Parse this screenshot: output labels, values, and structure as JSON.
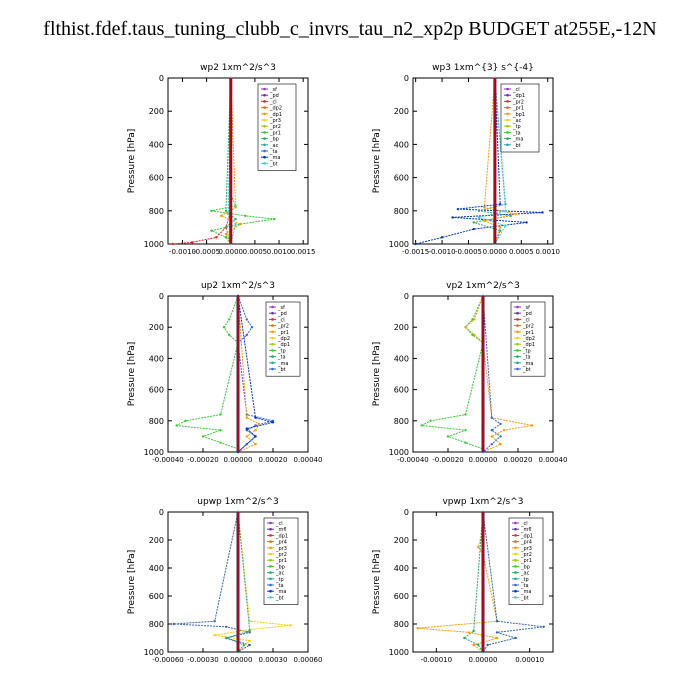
{
  "page": {
    "title": "flthist.fdef.taus_tuning_clubb_c_invrs_tau_n2_xp2p  BUDGET at255E,-12N"
  },
  "colors": {
    "frame": "#000000",
    "budget_line": "#cc0000",
    "budget_line_dark": "#5a1a5a"
  },
  "chart_data": [
    {
      "id": "wp2",
      "type": "line",
      "title": "wp2   1xm^2/s^3",
      "ylabel": "Pressure [hPa]",
      "ylim": [
        1000,
        0
      ],
      "xlim": [
        -0.0013,
        0.0016
      ],
      "xticks": [
        -0.001,
        -0.0005,
        0.0,
        0.0005,
        0.001,
        0.0015
      ],
      "xtick_labels": [
        "-0.0010",
        "-0.0005",
        "0.0000",
        "0.0005",
        "0.0010",
        "0.0015"
      ],
      "yticks": [
        0,
        200,
        400,
        600,
        800,
        1000
      ],
      "yticks_labels": [
        "0",
        "200",
        "400",
        "600",
        "800",
        "1000"
      ],
      "legend": [
        "_sf",
        "_pd",
        "_cl",
        "_dp2",
        "_dp1",
        "_pr3",
        "_pr2",
        "_pr1",
        "_bp",
        "_ac",
        "_ta",
        "_ma",
        "_bt"
      ],
      "series": [
        {
          "legend": "_pr1",
          "color": "#33cc33",
          "pressure": [
            0,
            700,
            770,
            800,
            830,
            850,
            880,
            920,
            960,
            1000
          ],
          "values": [
            0,
            0,
            0.0001,
            -0.0004,
            0.0003,
            0.0009,
            0.0002,
            -0.0004,
            -0.0001,
            0
          ]
        },
        {
          "legend": "_cl",
          "color": "#ee2222",
          "pressure": [
            0,
            800,
            900,
            960,
            990,
            1000
          ],
          "values": [
            0,
            0,
            -0.0001,
            -0.0003,
            -0.0008,
            -0.0012
          ]
        },
        {
          "legend": "_dp2",
          "color": "#ff9900",
          "pressure": [
            0,
            780,
            830,
            880,
            940,
            1000
          ],
          "values": [
            0,
            0.0001,
            -0.0002,
            0.0002,
            -0.0001,
            0
          ]
        },
        {
          "legend": "_bp",
          "color": "#33aa66",
          "pressure": [
            0,
            800,
            850,
            900,
            1000
          ],
          "values": [
            0,
            -0.0001,
            0.0001,
            -0.0001,
            0
          ]
        },
        {
          "legend": "_bt",
          "color": "#44ccdd",
          "pressure": [
            0,
            820,
            880,
            1000
          ],
          "values": [
            0,
            -5e-05,
            0.0001,
            0
          ]
        }
      ]
    },
    {
      "id": "wp3",
      "type": "line",
      "title": "wp3   1xm^{3} s^{-4}",
      "ylabel": "Pressure [hPa]",
      "ylim": [
        1000,
        0
      ],
      "xlim": [
        -0.00155,
        0.0011
      ],
      "xticks": [
        -0.0015,
        -0.001,
        -0.0005,
        0.0,
        0.0005,
        0.001
      ],
      "xtick_labels": [
        "-0.0015",
        "-0.0010",
        "-0.0005",
        "0.0000",
        "0.0005",
        "0.0010"
      ],
      "yticks": [
        0,
        200,
        400,
        600,
        800,
        1000
      ],
      "yticks_labels": [
        "0",
        "200",
        "400",
        "600",
        "800",
        "1000"
      ],
      "legend": [
        "_cl",
        "_dp1",
        "_pr2",
        "_pr1",
        "_bp1",
        "_ac",
        "_tp",
        "_ta",
        "_ma",
        "_bt"
      ],
      "series": [
        {
          "legend": "_tp",
          "color": "#0033cc",
          "pressure": [
            0,
            760,
            790,
            810,
            840,
            870,
            910,
            960,
            1000
          ],
          "values": [
            0,
            0.0001,
            -0.0007,
            0.0009,
            -0.0008,
            0.0006,
            -0.0004,
            -0.001,
            -0.0015
          ]
        },
        {
          "legend": "_ac",
          "color": "#33aa66",
          "pressure": [
            0,
            760,
            800,
            830,
            870,
            920,
            1000
          ],
          "values": [
            0,
            0.0002,
            -0.0003,
            0.0003,
            -0.0004,
            0.0001,
            0
          ]
        },
        {
          "legend": "_pr1",
          "color": "#ff9900",
          "pressure": [
            0,
            780,
            820,
            860,
            900,
            1000
          ],
          "values": [
            0,
            -0.0002,
            0.0004,
            -0.0002,
            0.0001,
            0
          ]
        },
        {
          "legend": "_bt",
          "color": "#44ccdd",
          "pressure": [
            0,
            800,
            840,
            890,
            1000
          ],
          "values": [
            0,
            0.0002,
            -0.0003,
            0.0002,
            0
          ]
        }
      ]
    },
    {
      "id": "up2",
      "type": "line",
      "title": "up2   1xm^2/s^3",
      "ylabel": "Pressure [hPa]",
      "ylim": [
        1000,
        0
      ],
      "xlim": [
        -0.0004,
        0.0004
      ],
      "xticks": [
        -0.0004,
        -0.0002,
        0.0,
        0.0002,
        0.0004
      ],
      "xtick_labels": [
        "-0.00040",
        "-0.00020",
        "0.00000",
        "0.00020",
        "0.00040"
      ],
      "yticks": [
        0,
        200,
        400,
        600,
        800,
        1000
      ],
      "yticks_labels": [
        "0",
        "200",
        "400",
        "600",
        "800",
        "1000"
      ],
      "legend": [
        "_sf",
        "_pd",
        "_cl",
        "_pr2",
        "_pr1",
        "_dp2",
        "_dp1",
        "_tp",
        "_ta",
        "_ma",
        "_bt"
      ],
      "series": [
        {
          "legend": "_dp1",
          "color": "#33cc33",
          "pressure": [
            0,
            150,
            200,
            250,
            300,
            760,
            800,
            830,
            860,
            900,
            940,
            980,
            1000
          ],
          "values": [
            0,
            -5e-05,
            -8e-05,
            -5e-05,
            0,
            -0.0001,
            -0.0003,
            -0.00035,
            -0.0001,
            -0.0002,
            -0.0001,
            0,
            0
          ]
        },
        {
          "legend": "_tp",
          "color": "#3366ee",
          "pressure": [
            0,
            150,
            200,
            250,
            300,
            760,
            800,
            830,
            860,
            900,
            950,
            1000
          ],
          "values": [
            0,
            5e-05,
            8e-05,
            5e-05,
            0,
            5e-05,
            0.0002,
            0.0001,
            5e-05,
            0.0001,
            5e-05,
            0
          ]
        },
        {
          "legend": "_pr1",
          "color": "#ff9900",
          "pressure": [
            0,
            780,
            820,
            860,
            900,
            950,
            1000
          ],
          "values": [
            0,
            5e-05,
            0.00012,
            0.0001,
            5e-05,
            0.0001,
            0
          ]
        },
        {
          "legend": "_ta",
          "color": "#0033cc",
          "pressure": [
            0,
            780,
            810,
            850,
            900,
            1000
          ],
          "values": [
            0,
            0.0001,
            0.0002,
            5e-05,
            0.0001,
            0
          ]
        }
      ]
    },
    {
      "id": "vp2",
      "type": "line",
      "title": "vp2   1xm^2/s^3",
      "ylabel": "Pressure [hPa]",
      "ylim": [
        1000,
        0
      ],
      "xlim": [
        -0.0004,
        0.0004
      ],
      "xticks": [
        -0.0004,
        -0.0002,
        0.0,
        0.0002,
        0.0004
      ],
      "xtick_labels": [
        "-0.00040",
        "-0.00020",
        "0.00000",
        "0.00020",
        "0.00040"
      ],
      "yticks": [
        0,
        200,
        400,
        600,
        800,
        1000
      ],
      "yticks_labels": [
        "0",
        "200",
        "400",
        "600",
        "800",
        "1000"
      ],
      "legend": [
        "_sf",
        "_pd",
        "_cl",
        "_pr2",
        "_pr1",
        "_dp2",
        "_dp1",
        "_tp",
        "_ta",
        "_ma",
        "_bt"
      ],
      "series": [
        {
          "legend": "_dp1",
          "color": "#33cc33",
          "pressure": [
            0,
            150,
            200,
            250,
            300,
            760,
            800,
            830,
            860,
            900,
            940,
            980,
            1000
          ],
          "values": [
            0,
            -6e-05,
            -0.0001,
            -6e-05,
            0,
            -0.0001,
            -0.0003,
            -0.00035,
            -0.0001,
            -0.0002,
            -0.0001,
            0,
            0
          ]
        },
        {
          "legend": "_pr1",
          "color": "#ff9900",
          "pressure": [
            0,
            150,
            200,
            250,
            300,
            780,
            830,
            860,
            900,
            950,
            1000
          ],
          "values": [
            0,
            -5e-05,
            -0.0001,
            -5e-05,
            0,
            5e-05,
            0.00028,
            0.00012,
            5e-05,
            0.0001,
            0
          ]
        },
        {
          "legend": "_tp",
          "color": "#3366ee",
          "pressure": [
            0,
            780,
            820,
            860,
            900,
            950,
            1000
          ],
          "values": [
            0,
            5e-05,
            0.0001,
            5e-05,
            0.0001,
            5e-05,
            0
          ]
        }
      ]
    },
    {
      "id": "upwp",
      "type": "line",
      "title": "upwp   1xm^2/s^3",
      "ylabel": "Pressure [hPa]",
      "ylim": [
        1000,
        0
      ],
      "xlim": [
        -0.0006,
        0.0006
      ],
      "xticks": [
        -0.0006,
        -0.0003,
        0.0,
        0.0003,
        0.0006
      ],
      "xtick_labels": [
        "-0.00060",
        "-0.00030",
        "0.00000",
        "0.00030",
        "0.00060"
      ],
      "yticks": [
        0,
        200,
        400,
        600,
        800,
        1000
      ],
      "yticks_labels": [
        "0",
        "200",
        "400",
        "600",
        "800",
        "1000"
      ],
      "legend": [
        "_cl",
        "_mfl",
        "_dp1",
        "_pr4",
        "_pr3",
        "_pr2",
        "_pr1",
        "_bp",
        "_ac",
        "_tp",
        "_ta",
        "_ma",
        "_bt"
      ],
      "series": [
        {
          "legend": "_ma",
          "color": "#3366aa",
          "pressure": [
            0,
            780,
            800,
            820,
            860,
            900,
            950,
            1000
          ],
          "values": [
            0,
            -0.0002,
            -0.00055,
            -0.0001,
            0.0001,
            -0.0001,
            0.0001,
            0
          ]
        },
        {
          "legend": "_pr1",
          "color": "#ffcc00",
          "pressure": [
            0,
            780,
            810,
            840,
            880,
            920,
            1000
          ],
          "values": [
            0,
            0.0001,
            0.00045,
            0.0001,
            -0.0002,
            0.0001,
            0
          ]
        },
        {
          "legend": "_bt",
          "color": "#33aa66",
          "pressure": [
            0,
            850,
            900,
            950,
            1000
          ],
          "values": [
            0,
            0.0001,
            -0.0001,
            5e-05,
            0
          ]
        }
      ]
    },
    {
      "id": "vpwp",
      "type": "line",
      "title": "vpwp   1xm^2/s^3",
      "ylabel": "Pressure [hPa]",
      "ylim": [
        1000,
        0
      ],
      "xlim": [
        -0.00015,
        0.00015
      ],
      "xticks": [
        -0.0001,
        0.0,
        0.0001
      ],
      "xtick_labels": [
        "-0.00010",
        "0.00000",
        "0.00010"
      ],
      "yticks": [
        0,
        200,
        400,
        600,
        800,
        1000
      ],
      "yticks_labels": [
        "0",
        "200",
        "400",
        "600",
        "800",
        "1000"
      ],
      "legend": [
        "_cl",
        "_mfl",
        "_dp1",
        "_pr4",
        "_pr3",
        "_pr2",
        "_pr1",
        "_bp",
        "_ac",
        "_tp",
        "_ta",
        "_ma",
        "_bt"
      ],
      "series": [
        {
          "legend": "_pr2",
          "color": "#ff9900",
          "pressure": [
            0,
            200,
            250,
            300,
            780,
            830,
            860,
            900,
            950,
            1000
          ],
          "values": [
            0,
            -5e-06,
            -1e-05,
            0,
            3e-05,
            -0.00014,
            -3e-05,
            3e-05,
            -2e-05,
            0
          ]
        },
        {
          "legend": "_ma",
          "color": "#3366aa",
          "pressure": [
            0,
            780,
            820,
            860,
            900,
            950,
            1000
          ],
          "values": [
            0,
            3e-05,
            0.00013,
            3e-05,
            7e-05,
            1e-05,
            0
          ]
        },
        {
          "legend": "_ac",
          "color": "#33aa66",
          "pressure": [
            0,
            850,
            900,
            950,
            1000
          ],
          "values": [
            0,
            -2e-05,
            -4e-05,
            -1e-05,
            0
          ]
        }
      ]
    }
  ]
}
